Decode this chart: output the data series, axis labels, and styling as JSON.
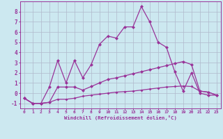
{
  "x": [
    0,
    1,
    2,
    3,
    4,
    5,
    6,
    7,
    8,
    9,
    10,
    11,
    12,
    13,
    14,
    15,
    16,
    17,
    18,
    19,
    20,
    21,
    22,
    23
  ],
  "line1": [
    -0.5,
    -1.0,
    -1.0,
    0.6,
    3.2,
    1.0,
    3.2,
    1.5,
    2.8,
    4.8,
    5.6,
    5.4,
    6.5,
    6.5,
    8.5,
    7.0,
    5.0,
    4.5,
    2.1,
    0.2,
    2.0,
    0.0,
    -0.2,
    -0.2
  ],
  "line2": [
    -0.5,
    -1.0,
    -1.0,
    -0.9,
    0.6,
    0.6,
    0.6,
    0.3,
    0.65,
    1.0,
    1.35,
    1.5,
    1.7,
    1.9,
    2.1,
    2.3,
    2.5,
    2.7,
    2.9,
    3.1,
    2.8,
    0.2,
    0.1,
    -0.2
  ],
  "line3": [
    -0.5,
    -1.0,
    -1.0,
    -0.9,
    -0.6,
    -0.6,
    -0.5,
    -0.3,
    -0.2,
    -0.1,
    0.0,
    0.1,
    0.15,
    0.2,
    0.3,
    0.4,
    0.5,
    0.6,
    0.65,
    0.7,
    0.65,
    0.2,
    0.1,
    -0.2
  ],
  "color": "#993399",
  "bg_color": "#cce8f0",
  "grid_color": "#b0b8cc",
  "xlabel": "Windchill (Refroidissement éolien,°C)",
  "yticks": [
    -1,
    0,
    1,
    2,
    3,
    4,
    5,
    6,
    7,
    8
  ],
  "xticks": [
    0,
    1,
    2,
    3,
    4,
    5,
    6,
    7,
    8,
    9,
    10,
    11,
    12,
    13,
    14,
    15,
    16,
    17,
    18,
    19,
    20,
    21,
    22,
    23
  ],
  "ylim": [
    -1.5,
    9.0
  ],
  "xlim": [
    -0.5,
    23.5
  ]
}
